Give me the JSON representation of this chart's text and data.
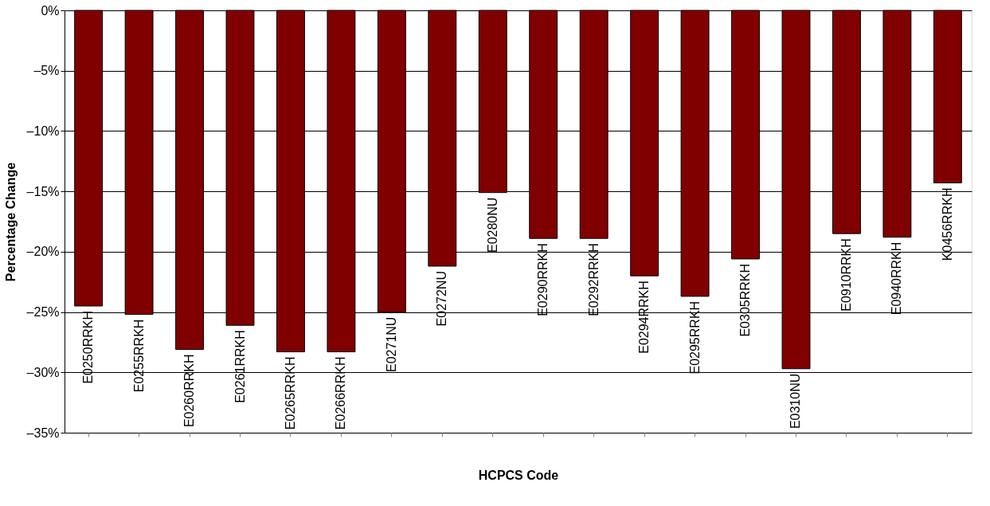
{
  "chart_data": {
    "type": "bar",
    "xlabel": "HCPCS Code",
    "ylabel": "Percentage Change",
    "categories": [
      "E0250RRKH",
      "E0255RRKH",
      "E0260RRKH",
      "E0261RRKH",
      "E0265RRKH",
      "E0266RRKH",
      "E0271NU",
      "E0272NU",
      "E0280NU",
      "E0290RRKH",
      "E0292RRKH",
      "E0294RRKH",
      "E0295RRKH",
      "E0305RRKH",
      "E0310NU",
      "E0910RRKH",
      "E0940RRKH",
      "K0456RRKH"
    ],
    "values": [
      -24.5,
      -25.2,
      -28.1,
      -26.1,
      -28.3,
      -28.3,
      -25.0,
      -21.2,
      -15.1,
      -18.9,
      -18.9,
      -22.0,
      -23.7,
      -20.6,
      -29.7,
      -18.5,
      -18.8,
      -14.3
    ],
    "color": "#800000",
    "ylim": [
      -35,
      0
    ],
    "yticks": [
      {
        "value": 0,
        "label": "0%"
      },
      {
        "value": -5,
        "label": "–5%"
      },
      {
        "value": -10,
        "label": "–10%"
      },
      {
        "value": -15,
        "label": "–15%"
      },
      {
        "value": -20,
        "label": "–20%"
      },
      {
        "value": -25,
        "label": "–25%"
      },
      {
        "value": -30,
        "label": "–30%"
      },
      {
        "value": -35,
        "label": "–35%"
      }
    ],
    "grid": "y"
  }
}
